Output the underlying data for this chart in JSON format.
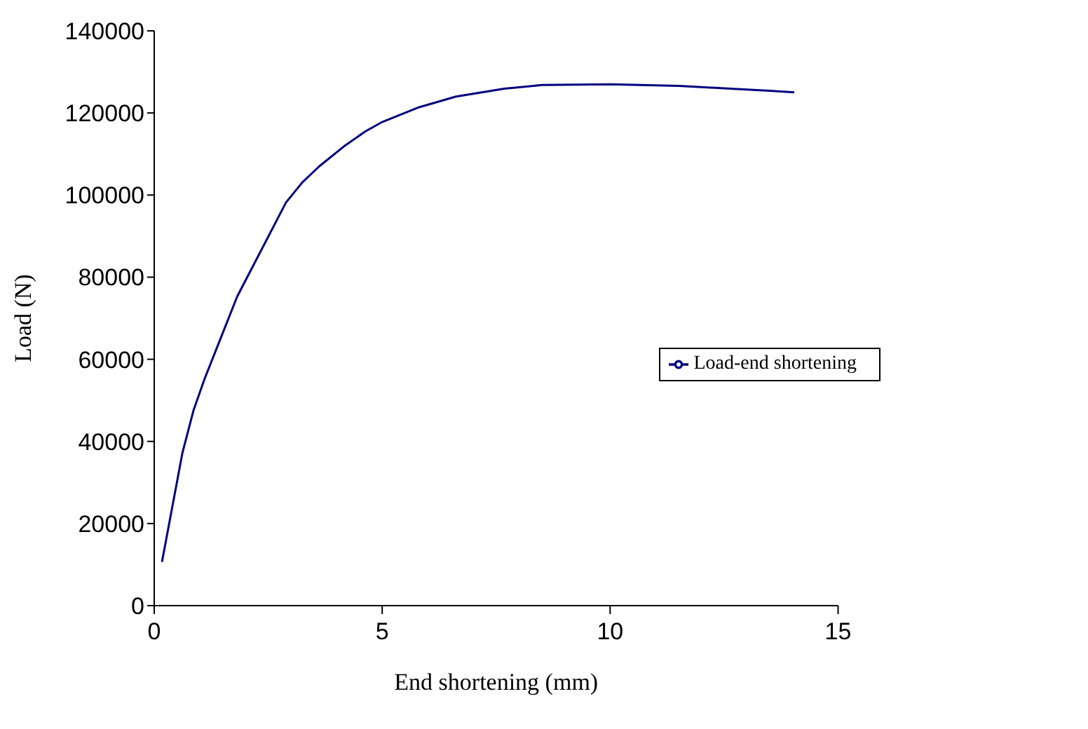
{
  "chart_data": {
    "type": "line",
    "xlabel": "End shortening (mm)",
    "ylabel": "Load (N)",
    "xlim": [
      0,
      15
    ],
    "xticks": [
      0,
      5,
      10,
      15
    ],
    "ylim": [
      0,
      140000
    ],
    "yticks": [
      0,
      20000,
      40000,
      60000,
      80000,
      100000,
      120000,
      140000
    ],
    "grid": false,
    "legend": "right",
    "marker": "none",
    "line_style": "solid",
    "series": [
      {
        "name": "Load-end shortening",
        "color": "#000080",
        "x": [
          0.17,
          0.62,
          0.86,
          1.1,
          1.82,
          2.89,
          3.25,
          3.62,
          4.19,
          4.63,
          5.0,
          5.81,
          6.62,
          7.68,
          8.5,
          10,
          11.5,
          12.5,
          13.5,
          14.04
        ],
        "values": [
          10650,
          37300,
          47500,
          55100,
          75300,
          98200,
          103100,
          107000,
          112100,
          115500,
          117800,
          121400,
          124000,
          125900,
          126800,
          127000,
          126600,
          126000,
          125400,
          125000
        ]
      }
    ]
  }
}
